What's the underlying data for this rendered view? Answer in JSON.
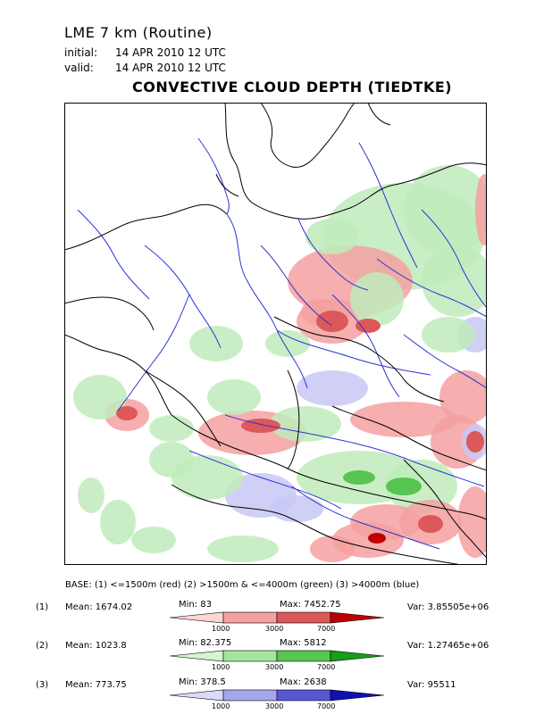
{
  "header": {
    "model": "LME 7 km (Routine)",
    "initial_label": "initial:",
    "initial_value": "14  APR  2010     12  UTC",
    "valid_label": "valid:",
    "valid_value": "14  APR  2010     12  UTC",
    "title": "CONVECTIVE CLOUD DEPTH (TIEDTKE)"
  },
  "legend": {
    "base_text": "BASE:  (1)  <=1500m (red)     (2)  >1500m  &  <=4000m (green)     (3)  >4000m  (blue)",
    "rows": [
      {
        "num": "(1)",
        "mean_label": "Mean:",
        "mean": "1674.02",
        "min_label": "Min:",
        "min": "83",
        "max_label": "Max:",
        "max": "7452.75",
        "var_label": "Var:",
        "var": "3.85505e+06",
        "colors": [
          "#ffd6d6",
          "#f4a0a0",
          "#dd5858",
          "#c00000"
        ]
      },
      {
        "num": "(2)",
        "mean_label": "Mean:",
        "mean": "1023.8",
        "min_label": "Min:",
        "min": "82.375",
        "max_label": "Max:",
        "max": "5812",
        "var_label": "Var:",
        "var": "1.27465e+06",
        "colors": [
          "#d6f5d2",
          "#a4e79c",
          "#58c452",
          "#14a014"
        ]
      },
      {
        "num": "(3)",
        "mean_label": "Mean:",
        "mean": "773.75",
        "min_label": "Min:",
        "min": "378.5",
        "max_label": "Max:",
        "max": "2638",
        "var_label": "Var:",
        "var": "95511",
        "colors": [
          "#dadafa",
          "#a6a6ee",
          "#5858d4",
          "#1010b4"
        ]
      }
    ],
    "tick_labels": [
      "1000",
      "3000",
      "7000"
    ]
  },
  "map": {
    "coast_color": "#000000",
    "river_color": "#2b34d6",
    "red_fill": "#f4a0a0",
    "green_fill": "#bfebbb",
    "blue_fill": "#c8c8f6"
  }
}
